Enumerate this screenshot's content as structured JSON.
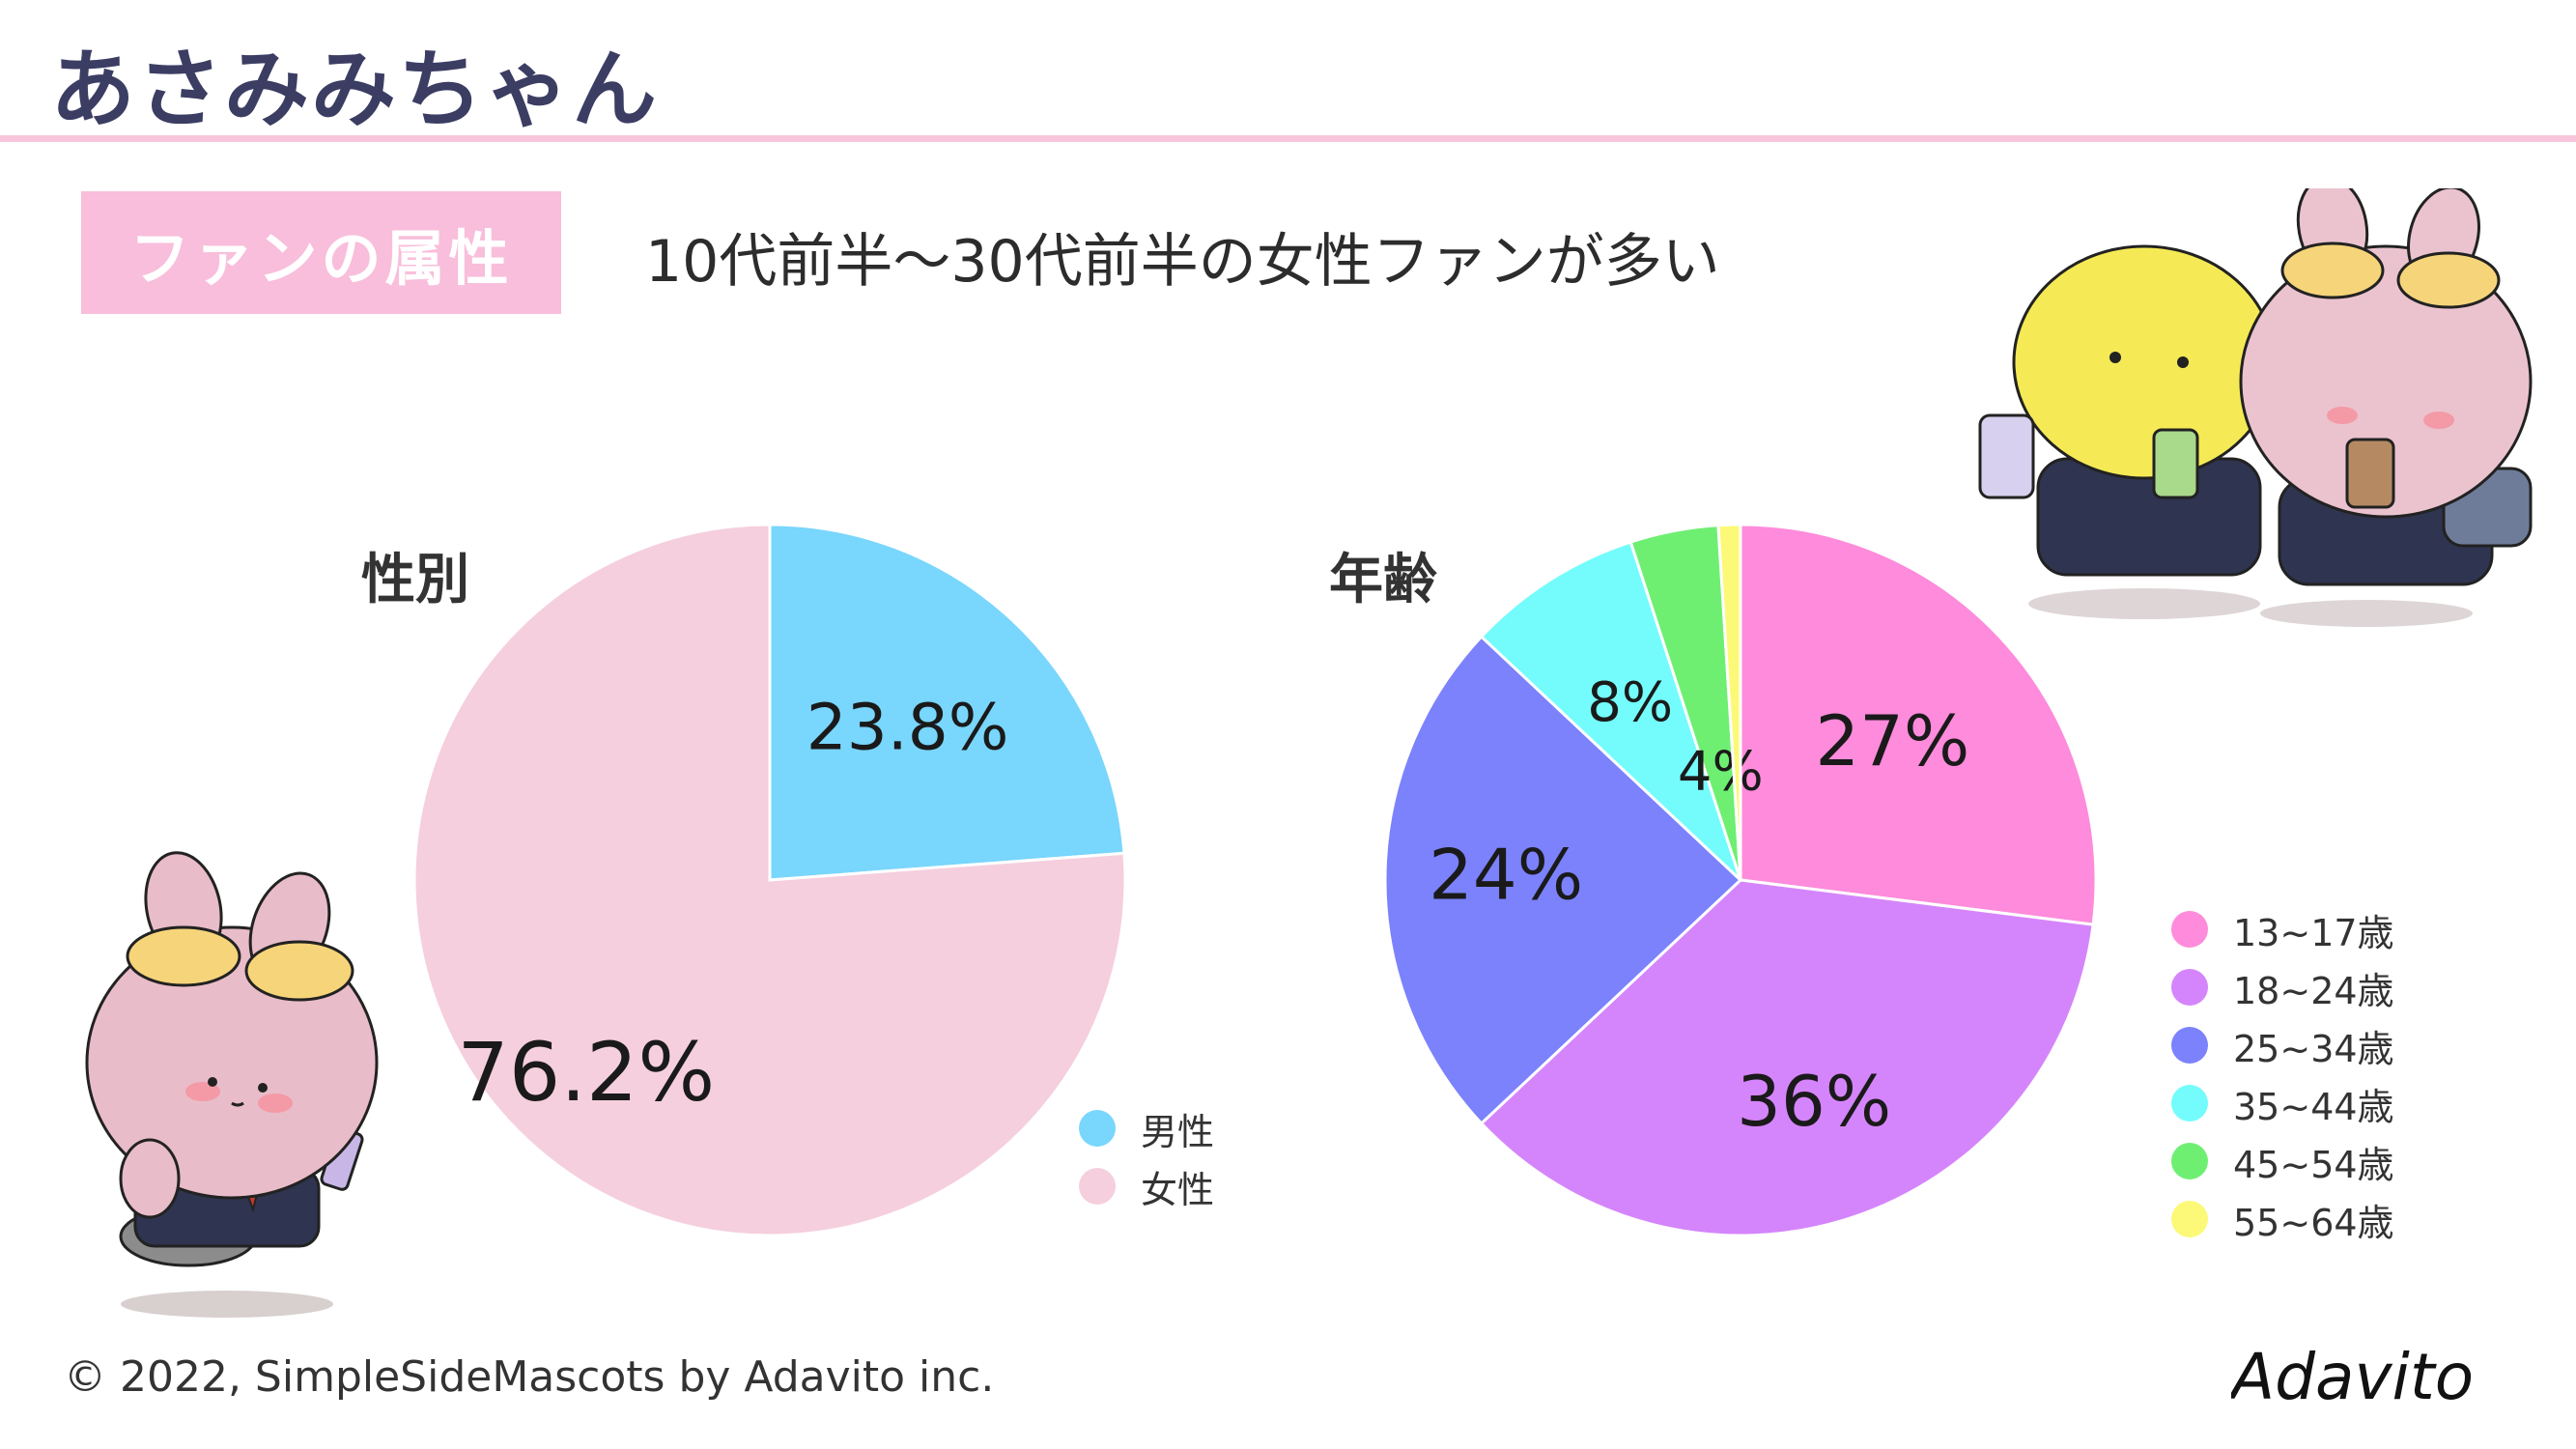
{
  "header": {
    "title": "あさみみちゃん"
  },
  "section": {
    "badge": "ファンの属性",
    "headline": "10代前半〜30代前半の女性ファンが多い"
  },
  "footer": {
    "copyright": "© 2022, SimpleSideMascots by Adavito inc."
  },
  "logo": {
    "text": "Adavito"
  },
  "chart_data": [
    {
      "type": "pie",
      "title": "性別",
      "categories": [
        "男性",
        "女性"
      ],
      "values": [
        23.8,
        76.2
      ],
      "labels": [
        "23.8%",
        "76.2%"
      ],
      "colors": [
        "#79d6fd",
        "#f5cfdd"
      ],
      "legend_position": "bottom-right"
    },
    {
      "type": "pie",
      "title": "年齢",
      "categories": [
        "13~17歳",
        "18~24歳",
        "25~34歳",
        "35~44歳",
        "45~54歳",
        "55~64歳"
      ],
      "values": [
        27,
        36,
        24,
        8,
        4,
        1
      ],
      "labels": [
        "27%",
        "36%",
        "24%",
        "8%",
        "4%",
        ""
      ],
      "colors": [
        "#fe8bdb",
        "#d585fb",
        "#7b82fc",
        "#74fcfc",
        "#6eef72",
        "#fcf978"
      ],
      "legend_position": "right"
    }
  ]
}
